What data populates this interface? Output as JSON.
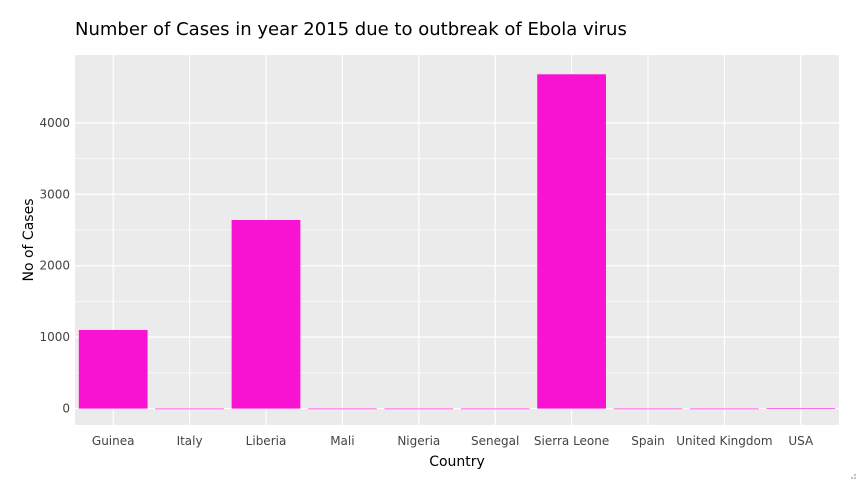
{
  "chart_data": {
    "type": "bar",
    "title": "Number of Cases in year 2015 due to outbreak of Ebola virus",
    "xlabel": "Country",
    "ylabel": "No of Cases",
    "categories": [
      "Guinea",
      "Italy",
      "Liberia",
      "Mali",
      "Nigeria",
      "Senegal",
      "Sierra Leone",
      "Spain",
      "United Kingdom",
      "USA"
    ],
    "values": [
      1100,
      0,
      2640,
      0,
      0,
      0,
      4680,
      0,
      0,
      4
    ],
    "ylim": [
      -230,
      4950
    ],
    "yticks": [
      0,
      1000,
      2000,
      3000,
      4000
    ],
    "grid": true,
    "legend": "none",
    "colors": {
      "bar": "#f812d2",
      "panel": "#ebebeb",
      "grid": "#ffffff"
    }
  }
}
